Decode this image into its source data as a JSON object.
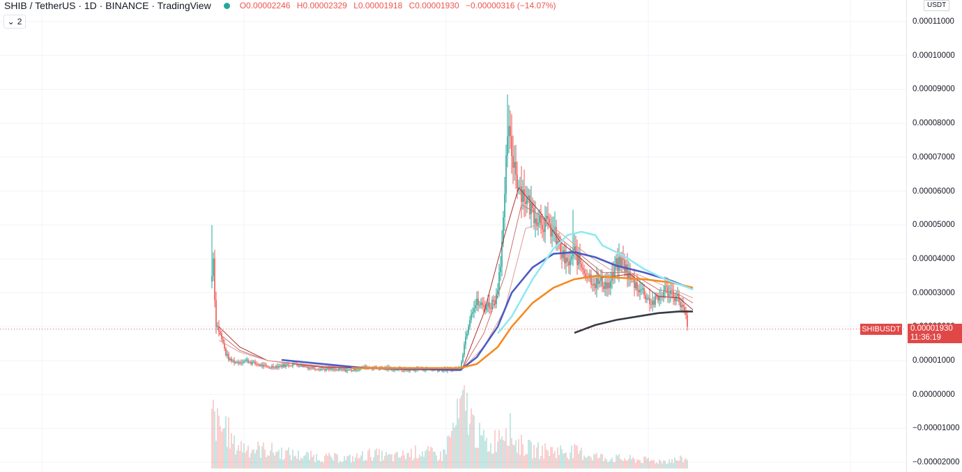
{
  "header": {
    "symbol": "SHIB / TetherUS · 1D · BINANCE · TradingView",
    "status_color": "#26a69a",
    "ohlc": {
      "open": "O0.00002246",
      "high": "H0.00002329",
      "low": "L0.00001918",
      "close": "C0.00001930",
      "change": "−0.00000316 (−14.07%)"
    },
    "indicator_toggle": "2"
  },
  "price_axis": {
    "currency": "USDT",
    "ticks": [
      "0.00011000",
      "0.00010000",
      "0.00009000",
      "0.00008000",
      "0.00007000",
      "0.00006000",
      "0.00005000",
      "0.00004000",
      "0.00003000",
      "0.00002000",
      "0.00001000",
      "0.00000000",
      "−0.00001000",
      "−0.00002000"
    ],
    "last_price_label": "0.00001930",
    "countdown": "11:36:19",
    "symbol_tag": "SHIBUSDT"
  },
  "colors": {
    "up": "#26a69a",
    "down": "#ef5350",
    "ma_blue": "#4a5bc4",
    "ma_orange": "#f5891f",
    "ma_cyan": "#8fe8f3",
    "ma_black": "#363a45",
    "ma_red": "#b02e2e",
    "grid": "#f0f3fa",
    "last_price_line": "#e04848"
  },
  "chart_data": {
    "type": "candlestick",
    "y_unit": "USDT",
    "ylim": [
      -2.1e-05,
      0.0001135
    ],
    "grid": true,
    "last_close": 1.93e-05,
    "close_path": [
      [
        0,
        3.5e-05
      ],
      [
        1,
        4.2e-05
      ],
      [
        2,
        2.8e-05
      ],
      [
        3,
        2.1e-05
      ],
      [
        5,
        1.9e-05
      ],
      [
        8,
        1.5e-05
      ],
      [
        10,
        1.2e-05
      ],
      [
        13,
        1e-05
      ],
      [
        18,
        9.5e-06
      ],
      [
        25,
        1e-05
      ],
      [
        30,
        9.2e-06
      ],
      [
        40,
        8e-06
      ],
      [
        50,
        8.5e-06
      ],
      [
        60,
        9e-06
      ],
      [
        70,
        8e-06
      ],
      [
        80,
        7.5e-06
      ],
      [
        90,
        7.2e-06
      ],
      [
        100,
        7.2e-06
      ],
      [
        110,
        8e-06
      ],
      [
        120,
        7.8e-06
      ],
      [
        130,
        7.5e-06
      ],
      [
        140,
        7.2e-06
      ],
      [
        150,
        7.5e-06
      ],
      [
        160,
        7.3e-06
      ],
      [
        170,
        7.2e-06
      ],
      [
        178,
        7.8e-06
      ],
      [
        182,
        1.7e-05
      ],
      [
        186,
        2.5e-05
      ],
      [
        190,
        2.7e-05
      ],
      [
        194,
        2.6e-05
      ],
      [
        200,
        2.65e-05
      ],
      [
        204,
        2.9e-05
      ],
      [
        207,
        4e-05
      ],
      [
        210,
        5.6e-05
      ],
      [
        212,
        7.8e-05
      ],
      [
        214,
        7.3e-05
      ],
      [
        217,
        6.8e-05
      ],
      [
        220,
        6.2e-05
      ],
      [
        225,
        5.8e-05
      ],
      [
        230,
        5.4e-05
      ],
      [
        235,
        5.2e-05
      ],
      [
        240,
        5e-05
      ],
      [
        245,
        4.8e-05
      ],
      [
        250,
        4.2e-05
      ],
      [
        255,
        3.8e-05
      ],
      [
        260,
        4.2e-05
      ],
      [
        265,
        3.8e-05
      ],
      [
        270,
        3.5e-05
      ],
      [
        275,
        3.3e-05
      ],
      [
        280,
        3.3e-05
      ],
      [
        285,
        3.2e-05
      ],
      [
        290,
        3.8e-05
      ],
      [
        295,
        3.9e-05
      ],
      [
        300,
        3.4e-05
      ],
      [
        305,
        3.2e-05
      ],
      [
        310,
        3e-05
      ],
      [
        315,
        2.7e-05
      ],
      [
        320,
        2.8e-05
      ],
      [
        325,
        3.1e-05
      ],
      [
        330,
        3e-05
      ],
      [
        335,
        2.8e-05
      ],
      [
        338,
        2.5e-05
      ],
      [
        340,
        2.25e-05
      ],
      [
        341,
        1.93e-05
      ]
    ],
    "notable_highs": [
      {
        "bar": 0,
        "high": 5e-05
      },
      {
        "bar": 212,
        "high": 8.85e-05
      },
      {
        "bar": 259,
        "high": 5.45e-05
      }
    ],
    "moving_averages": [
      {
        "color": "#4a5bc4",
        "points": [
          [
            50,
            1.02e-05
          ],
          [
            80,
            9e-06
          ],
          [
            110,
            7.8e-06
          ],
          [
            150,
            7.5e-06
          ],
          [
            178,
            7.2e-06
          ],
          [
            190,
            1.1e-05
          ],
          [
            205,
            2e-05
          ],
          [
            215,
            3e-05
          ],
          [
            230,
            3.75e-05
          ],
          [
            245,
            4.15e-05
          ],
          [
            260,
            4.2e-05
          ],
          [
            275,
            4.05e-05
          ],
          [
            290,
            3.8e-05
          ],
          [
            310,
            3.6e-05
          ],
          [
            330,
            3.35e-05
          ],
          [
            345,
            3.1e-05
          ]
        ]
      },
      {
        "color": "#f5891f",
        "points": [
          [
            100,
            7.8e-06
          ],
          [
            150,
            7.8e-06
          ],
          [
            178,
            7.8e-06
          ],
          [
            190,
            9e-06
          ],
          [
            205,
            1.4e-05
          ],
          [
            215,
            2e-05
          ],
          [
            230,
            2.7e-05
          ],
          [
            245,
            3.15e-05
          ],
          [
            260,
            3.4e-05
          ],
          [
            275,
            3.5e-05
          ],
          [
            290,
            3.45e-05
          ],
          [
            310,
            3.4e-05
          ],
          [
            330,
            3.3e-05
          ],
          [
            345,
            3.15e-05
          ]
        ]
      },
      {
        "color": "#8fe8f3",
        "points": [
          [
            205,
            1.8e-05
          ],
          [
            215,
            2.3e-05
          ],
          [
            230,
            3.4e-05
          ],
          [
            245,
            4.3e-05
          ],
          [
            255,
            4.7e-05
          ],
          [
            265,
            4.8e-05
          ],
          [
            275,
            4.7e-05
          ],
          [
            280,
            4.4e-05
          ],
          [
            295,
            4.1e-05
          ],
          [
            310,
            3.7e-05
          ],
          [
            325,
            3.4e-05
          ],
          [
            345,
            3.1e-05
          ]
        ]
      },
      {
        "color": "#363a45",
        "points": [
          [
            260,
            1.82e-05
          ],
          [
            275,
            2.05e-05
          ],
          [
            290,
            2.2e-05
          ],
          [
            305,
            2.3e-05
          ],
          [
            320,
            2.4e-05
          ],
          [
            335,
            2.45e-05
          ],
          [
            345,
            2.45e-05
          ]
        ]
      }
    ],
    "fast_ma_bands": [
      {
        "color": "#b02e2e",
        "points": [
          [
            5,
            2e-05
          ],
          [
            20,
            1.4e-05
          ],
          [
            40,
            1e-05
          ],
          [
            80,
            8e-06
          ],
          [
            150,
            7.4e-06
          ],
          [
            180,
            8e-06
          ],
          [
            195,
            2.4e-05
          ],
          [
            210,
            4.7e-05
          ],
          [
            220,
            6.1e-05
          ],
          [
            235,
            5.4e-05
          ],
          [
            250,
            4.5e-05
          ],
          [
            265,
            4e-05
          ],
          [
            280,
            3.45e-05
          ],
          [
            300,
            3.55e-05
          ],
          [
            320,
            2.9e-05
          ],
          [
            335,
            2.85e-05
          ],
          [
            345,
            2.5e-05
          ]
        ]
      },
      {
        "color": "#c9706d",
        "points": [
          [
            5,
            1.8e-05
          ],
          [
            20,
            1.3e-05
          ],
          [
            40,
            1e-05
          ],
          [
            80,
            8.2e-06
          ],
          [
            150,
            7.6e-06
          ],
          [
            180,
            7.8e-06
          ],
          [
            195,
            1.8e-05
          ],
          [
            210,
            3.5e-05
          ],
          [
            222,
            5.6e-05
          ],
          [
            235,
            5.3e-05
          ],
          [
            250,
            4.6e-05
          ],
          [
            265,
            4.1e-05
          ],
          [
            280,
            3.6e-05
          ],
          [
            300,
            3.6e-05
          ],
          [
            320,
            3.1e-05
          ],
          [
            335,
            2.95e-05
          ],
          [
            345,
            2.7e-05
          ]
        ]
      },
      {
        "color": "#d99d99",
        "points": [
          [
            5,
            1.6e-05
          ],
          [
            20,
            1.25e-05
          ],
          [
            40,
            1e-05
          ],
          [
            80,
            8.4e-06
          ],
          [
            150,
            7.7e-06
          ],
          [
            180,
            7.7e-06
          ],
          [
            195,
            1.4e-05
          ],
          [
            210,
            2.5e-05
          ],
          [
            225,
            4.9e-05
          ],
          [
            240,
            5.1e-05
          ],
          [
            255,
            4.6e-05
          ],
          [
            270,
            4.1e-05
          ],
          [
            285,
            3.7e-05
          ],
          [
            305,
            3.55e-05
          ],
          [
            325,
            3.2e-05
          ],
          [
            345,
            2.85e-05
          ]
        ]
      }
    ],
    "volume": [
      {
        "bar": 0,
        "v": 0.92
      },
      {
        "bar": 2,
        "v": 0.78
      },
      {
        "bar": 6,
        "v": 0.62
      },
      {
        "bar": 10,
        "v": 0.7
      },
      {
        "bar": 14,
        "v": 0.45
      },
      {
        "bar": 16,
        "v": 0.38
      },
      {
        "bar": 30,
        "v": 0.32
      },
      {
        "bar": 40,
        "v": 0.3
      },
      {
        "bar": 60,
        "v": 0.22
      },
      {
        "bar": 80,
        "v": 0.18
      },
      {
        "bar": 100,
        "v": 0.16
      },
      {
        "bar": 115,
        "v": 0.24
      },
      {
        "bar": 130,
        "v": 0.18
      },
      {
        "bar": 150,
        "v": 0.28
      },
      {
        "bar": 165,
        "v": 0.2
      },
      {
        "bar": 180,
        "v": 1.0
      },
      {
        "bar": 183,
        "v": 0.98
      },
      {
        "bar": 190,
        "v": 0.55
      },
      {
        "bar": 200,
        "v": 0.35
      },
      {
        "bar": 207,
        "v": 0.62
      },
      {
        "bar": 212,
        "v": 0.72
      },
      {
        "bar": 218,
        "v": 0.42
      },
      {
        "bar": 230,
        "v": 0.3
      },
      {
        "bar": 259,
        "v": 0.28
      },
      {
        "bar": 280,
        "v": 0.18
      },
      {
        "bar": 300,
        "v": 0.15
      },
      {
        "bar": 320,
        "v": 0.12
      },
      {
        "bar": 340,
        "v": 0.15
      }
    ]
  }
}
